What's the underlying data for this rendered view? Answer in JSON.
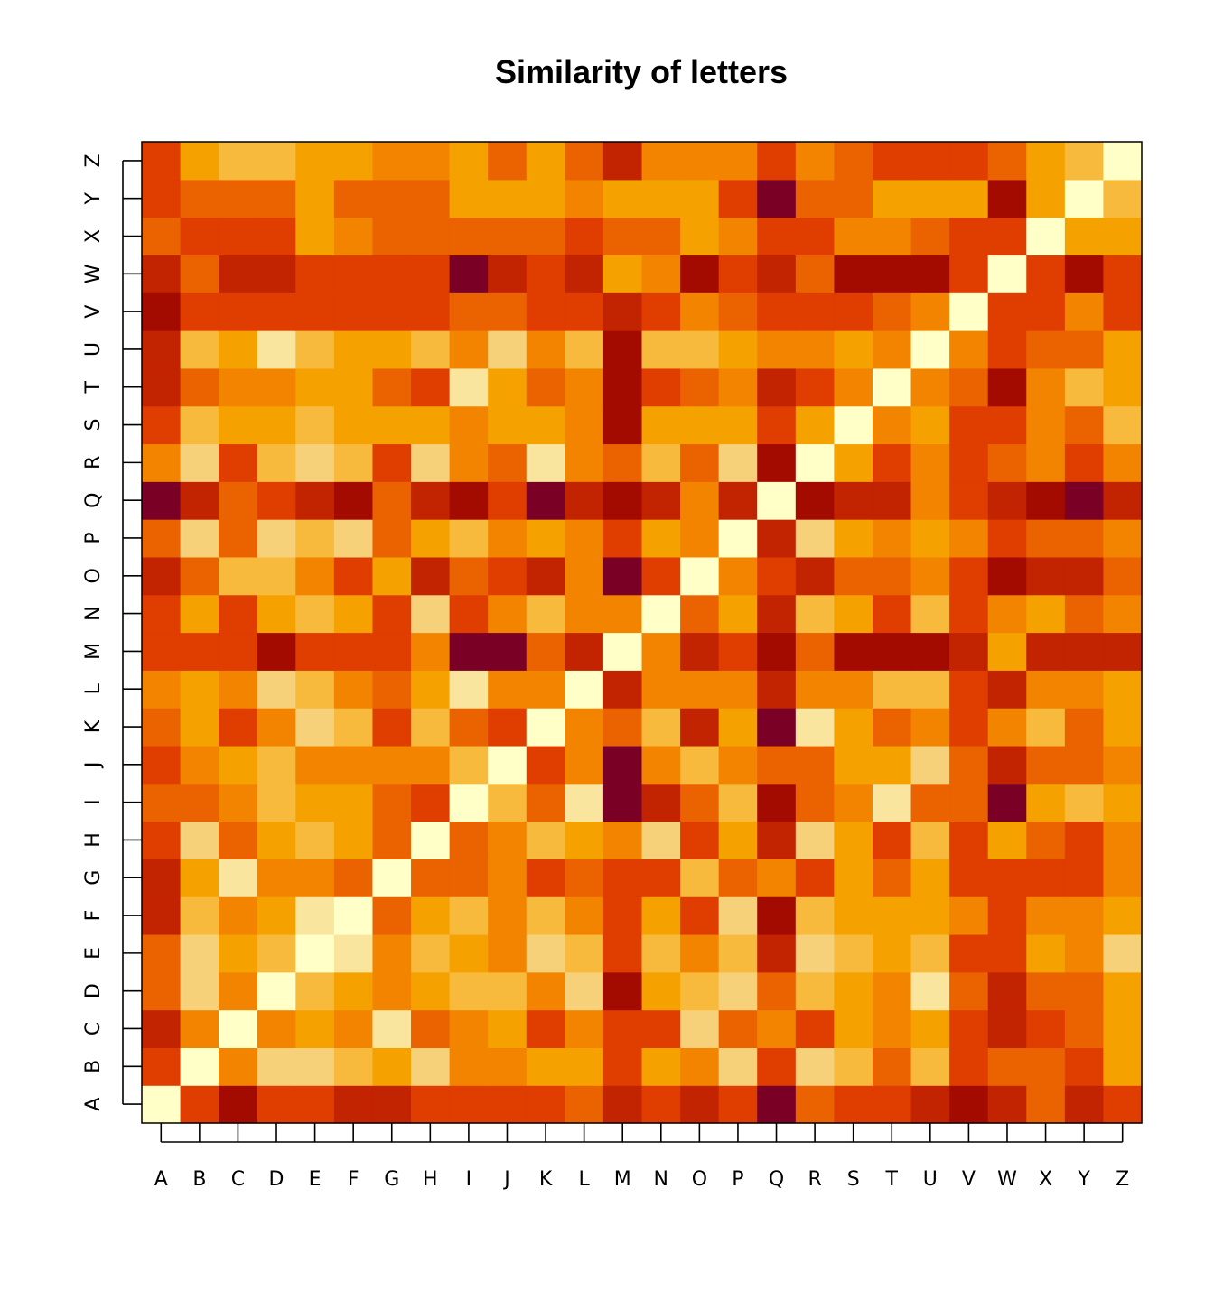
{
  "chart_data": {
    "type": "heatmap",
    "title": "Similarity of letters",
    "xlabel": "",
    "ylabel": "",
    "x_categories": [
      "A",
      "B",
      "C",
      "D",
      "E",
      "F",
      "G",
      "H",
      "I",
      "J",
      "K",
      "L",
      "M",
      "N",
      "O",
      "P",
      "Q",
      "R",
      "S",
      "T",
      "U",
      "V",
      "W",
      "X",
      "Y",
      "Z"
    ],
    "y_categories": [
      "A",
      "B",
      "C",
      "D",
      "E",
      "F",
      "G",
      "H",
      "I",
      "J",
      "K",
      "L",
      "M",
      "N",
      "O",
      "P",
      "Q",
      "R",
      "S",
      "T",
      "U",
      "V",
      "W",
      "X",
      "Y",
      "Z"
    ],
    "value_range": [
      0,
      8
    ],
    "color_scale": [
      "#7A0026",
      "#A30A00",
      "#C22300",
      "#E03D00",
      "#EB6200",
      "#F28400",
      "#F5A200",
      "#F7BA3C",
      "#F7D07A",
      "#FAE59E",
      "#FFFFC8"
    ],
    "legend": "none",
    "rows": [
      [
        10,
        3,
        1,
        3,
        3,
        2,
        2,
        3,
        3,
        3,
        3,
        4,
        2,
        3,
        2,
        3,
        0,
        4,
        3,
        3,
        2,
        1,
        2,
        4,
        2,
        3
      ],
      [
        3,
        10,
        5,
        8,
        8,
        7,
        6,
        8,
        5,
        5,
        6,
        6,
        3,
        6,
        5,
        8,
        3,
        8,
        7,
        4,
        7,
        3,
        4,
        4,
        3,
        6
      ],
      [
        2,
        5,
        10,
        5,
        6,
        5,
        9,
        4,
        5,
        6,
        3,
        5,
        3,
        3,
        8,
        4,
        5,
        3,
        6,
        5,
        6,
        3,
        2,
        3,
        4,
        6
      ],
      [
        4,
        8,
        5,
        10,
        7,
        6,
        5,
        6,
        7,
        7,
        5,
        8,
        1,
        6,
        7,
        8,
        4,
        7,
        6,
        5,
        9,
        4,
        2,
        4,
        4,
        6
      ],
      [
        4,
        8,
        6,
        7,
        10,
        9,
        5,
        7,
        6,
        5,
        8,
        7,
        3,
        7,
        5,
        7,
        2,
        8,
        7,
        6,
        7,
        3,
        3,
        6,
        5,
        8
      ],
      [
        2,
        7,
        5,
        6,
        9,
        10,
        4,
        6,
        7,
        5,
        7,
        5,
        3,
        6,
        3,
        8,
        1,
        7,
        6,
        6,
        6,
        5,
        3,
        5,
        5,
        6
      ],
      [
        2,
        6,
        9,
        5,
        5,
        4,
        10,
        4,
        4,
        5,
        3,
        4,
        3,
        3,
        7,
        4,
        5,
        3,
        6,
        4,
        6,
        3,
        3,
        3,
        3,
        5
      ],
      [
        3,
        8,
        4,
        6,
        7,
        6,
        4,
        10,
        4,
        5,
        7,
        6,
        5,
        8,
        3,
        6,
        2,
        8,
        6,
        3,
        7,
        3,
        6,
        4,
        3,
        5
      ],
      [
        4,
        4,
        5,
        7,
        6,
        6,
        4,
        3,
        10,
        7,
        4,
        9,
        0,
        2,
        4,
        7,
        1,
        4,
        5,
        9,
        4,
        4,
        0,
        6,
        7,
        6
      ],
      [
        3,
        5,
        6,
        7,
        5,
        5,
        5,
        5,
        7,
        10,
        3,
        5,
        0,
        5,
        7,
        5,
        4,
        4,
        6,
        6,
        8,
        4,
        2,
        4,
        4,
        5
      ],
      [
        4,
        6,
        3,
        5,
        8,
        7,
        3,
        7,
        4,
        3,
        10,
        5,
        4,
        7,
        2,
        6,
        0,
        9,
        6,
        4,
        5,
        3,
        5,
        7,
        4,
        6
      ],
      [
        5,
        6,
        5,
        8,
        7,
        5,
        4,
        6,
        9,
        5,
        5,
        10,
        2,
        5,
        5,
        5,
        2,
        5,
        5,
        7,
        7,
        3,
        2,
        5,
        5,
        6
      ],
      [
        3,
        3,
        3,
        1,
        3,
        3,
        3,
        5,
        0,
        0,
        4,
        2,
        10,
        5,
        2,
        3,
        1,
        4,
        1,
        1,
        1,
        2,
        6,
        2,
        2,
        2
      ],
      [
        3,
        6,
        3,
        6,
        7,
        6,
        3,
        8,
        3,
        5,
        7,
        5,
        5,
        10,
        4,
        6,
        2,
        7,
        6,
        3,
        7,
        3,
        5,
        6,
        4,
        5
      ],
      [
        2,
        4,
        7,
        7,
        5,
        3,
        6,
        2,
        4,
        3,
        2,
        5,
        0,
        3,
        10,
        5,
        3,
        2,
        4,
        4,
        5,
        3,
        1,
        2,
        2,
        4
      ],
      [
        4,
        8,
        4,
        8,
        7,
        8,
        4,
        6,
        7,
        5,
        6,
        5,
        3,
        6,
        5,
        10,
        2,
        8,
        6,
        5,
        6,
        5,
        3,
        4,
        4,
        5
      ],
      [
        0,
        2,
        4,
        3,
        2,
        1,
        4,
        2,
        1,
        3,
        0,
        2,
        1,
        2,
        5,
        2,
        10,
        1,
        2,
        2,
        5,
        3,
        2,
        1,
        0,
        2
      ],
      [
        5,
        8,
        3,
        7,
        8,
        7,
        3,
        8,
        5,
        4,
        9,
        5,
        4,
        7,
        4,
        8,
        1,
        10,
        6,
        3,
        5,
        3,
        4,
        5,
        3,
        5
      ],
      [
        3,
        7,
        6,
        6,
        7,
        6,
        6,
        6,
        5,
        6,
        6,
        5,
        1,
        6,
        6,
        6,
        3,
        6,
        10,
        5,
        6,
        3,
        3,
        5,
        4,
        7
      ],
      [
        2,
        4,
        5,
        5,
        6,
        6,
        4,
        3,
        9,
        6,
        4,
        5,
        1,
        3,
        4,
        5,
        2,
        3,
        5,
        10,
        5,
        4,
        1,
        5,
        7,
        6
      ],
      [
        2,
        7,
        6,
        9,
        7,
        6,
        6,
        7,
        5,
        8,
        5,
        7,
        1,
        7,
        7,
        6,
        5,
        5,
        6,
        5,
        10,
        5,
        3,
        4,
        4,
        6
      ],
      [
        1,
        3,
        3,
        3,
        3,
        3,
        3,
        3,
        4,
        4,
        3,
        3,
        2,
        3,
        5,
        4,
        3,
        3,
        3,
        4,
        5,
        10,
        3,
        3,
        5,
        3
      ],
      [
        2,
        4,
        2,
        2,
        3,
        3,
        3,
        3,
        0,
        2,
        3,
        2,
        6,
        5,
        1,
        3,
        2,
        4,
        1,
        1,
        1,
        3,
        10,
        3,
        1,
        3
      ],
      [
        4,
        3,
        3,
        3,
        6,
        5,
        4,
        4,
        4,
        4,
        4,
        3,
        4,
        4,
        6,
        5,
        3,
        3,
        5,
        5,
        4,
        3,
        3,
        10,
        6,
        6
      ],
      [
        3,
        4,
        4,
        4,
        6,
        4,
        4,
        4,
        6,
        6,
        6,
        5,
        6,
        6,
        6,
        3,
        0,
        4,
        4,
        6,
        6,
        6,
        1,
        6,
        10,
        7
      ],
      [
        3,
        6,
        7,
        7,
        6,
        6,
        5,
        5,
        6,
        4,
        6,
        4,
        2,
        5,
        5,
        5,
        3,
        5,
        4,
        3,
        3,
        3,
        4,
        6,
        7,
        10
      ]
    ]
  }
}
